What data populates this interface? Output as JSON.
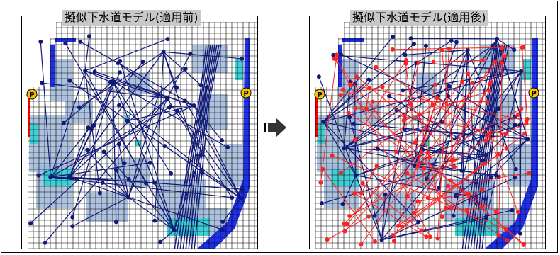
{
  "panels": {
    "left": {
      "title": "擬似下水道モデル(適用前)"
    },
    "right": {
      "title": "擬似下水道モデル(適用後)"
    }
  },
  "legend": {
    "pump_marker": "P"
  },
  "icons": {
    "transition": "right-arrow-icon"
  },
  "colors": {
    "grid": "#000000",
    "flood_light": "#9fb7d9",
    "flood_cyan": "#3fd0d6",
    "flood_blue": "#2030e8",
    "pipe_network": "#101878",
    "added_pipes": "#ff2020",
    "boundary_red": "#ff0000",
    "pump_fill": "#f5c400",
    "arrow": "#333333"
  }
}
